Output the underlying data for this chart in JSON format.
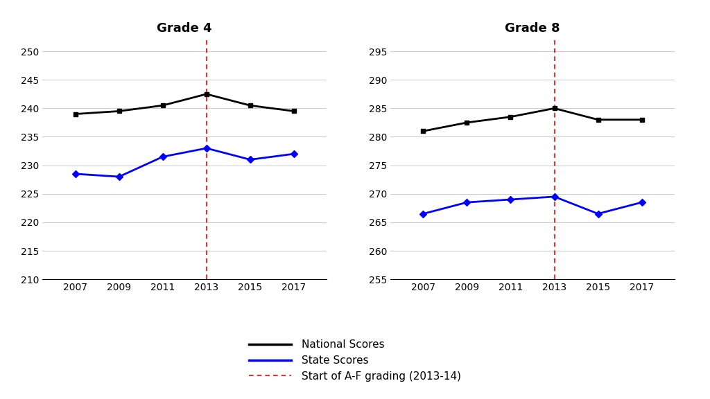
{
  "years": [
    2007,
    2009,
    2011,
    2013,
    2015,
    2017
  ],
  "grade4_national": [
    239,
    239.5,
    240.5,
    242.5,
    240.5,
    239.5
  ],
  "grade4_state": [
    228.5,
    228,
    231.5,
    233,
    231,
    232
  ],
  "grade8_national": [
    281,
    282.5,
    283.5,
    285,
    283,
    283
  ],
  "grade8_state": [
    266.5,
    268.5,
    269,
    269.5,
    266.5,
    268.5
  ],
  "grade4_ylim": [
    210,
    252
  ],
  "grade4_yticks": [
    210,
    215,
    220,
    225,
    230,
    235,
    240,
    245,
    250
  ],
  "grade8_ylim": [
    255,
    297
  ],
  "grade8_yticks": [
    255,
    260,
    265,
    270,
    275,
    280,
    285,
    290,
    295
  ],
  "vline_x": 2013,
  "national_color": "#000000",
  "state_color": "#0000FF",
  "vline_color": "#FF0000",
  "title4": "Grade 4",
  "title8": "Grade 8",
  "legend_national": "National Scores",
  "legend_state": "State Scores",
  "legend_vline": "Start of A-F grading (2013-14)",
  "background_color": "#FFFFFF",
  "grid_color": "#cccccc",
  "marker_national": "s",
  "marker_state": "D",
  "linewidth": 2.0,
  "markersize": 5,
  "title_fontsize": 13,
  "tick_fontsize": 10,
  "legend_fontsize": 11,
  "xlim": [
    2005.5,
    2018.5
  ]
}
